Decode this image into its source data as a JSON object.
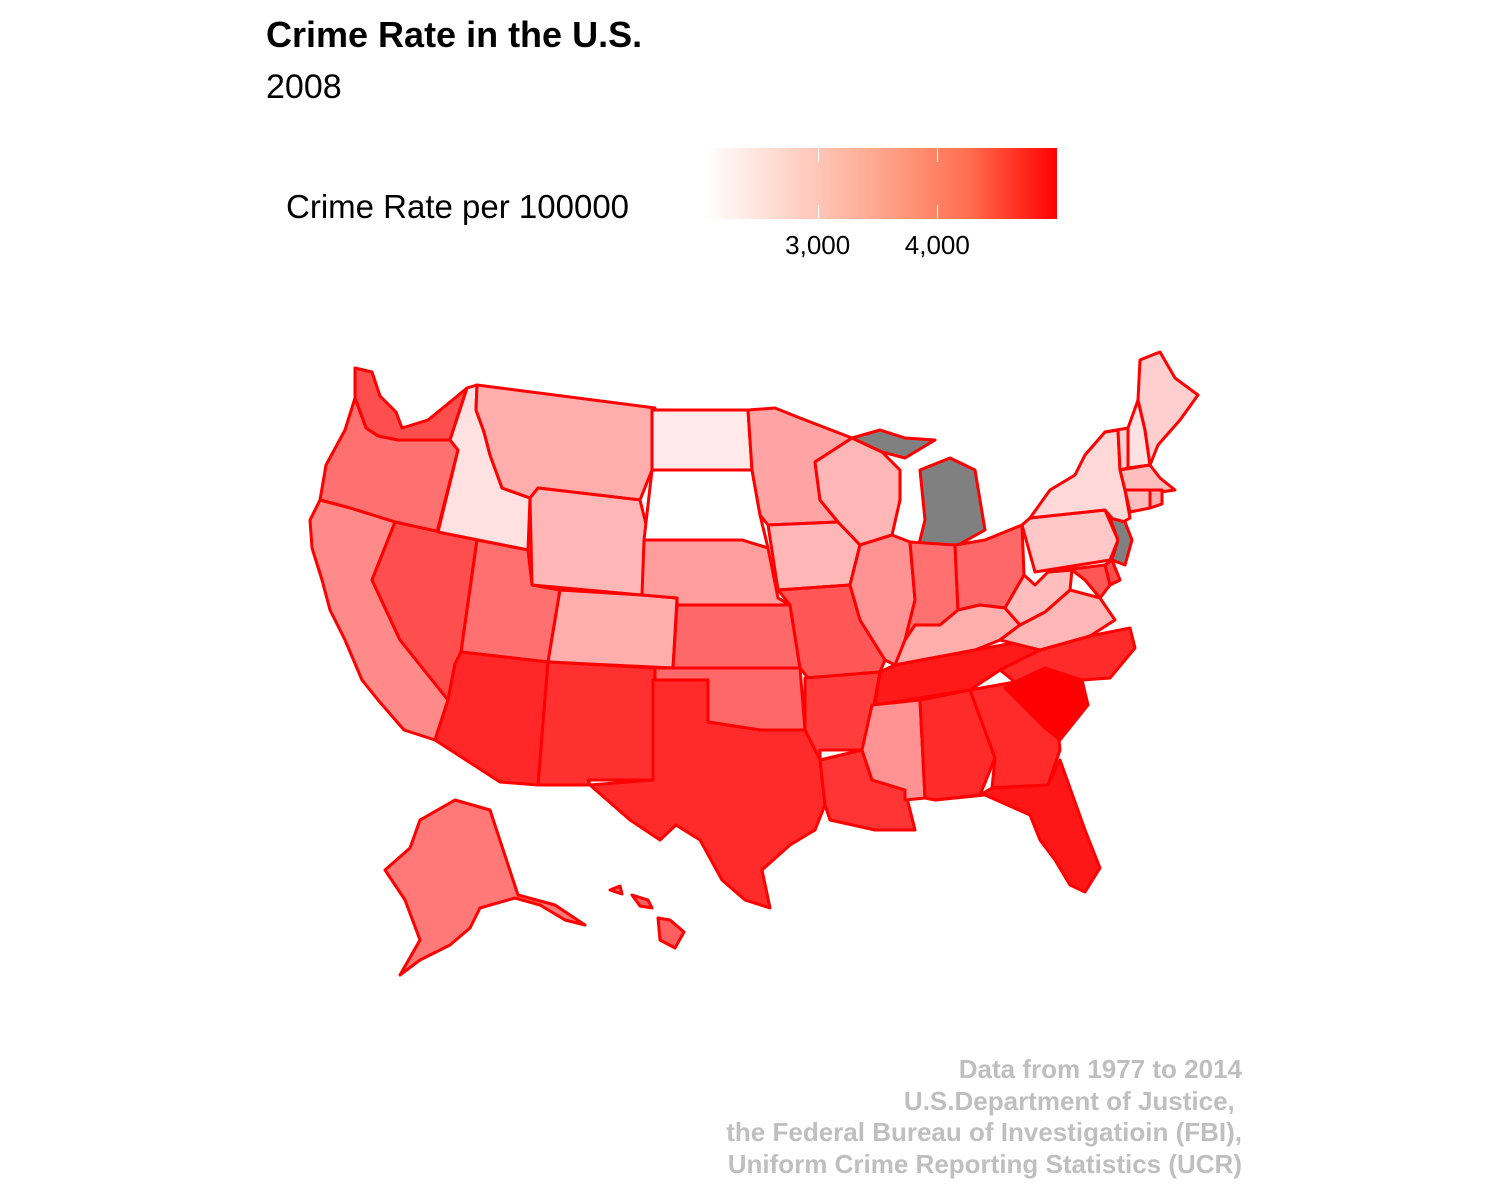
{
  "title": "Crime Rate in the U.S.",
  "subtitle": "2008",
  "legend": {
    "title": "Crime Rate per 100000",
    "ticks": [
      "3,000",
      "4,000"
    ],
    "tick_values": [
      3000,
      4000
    ],
    "range": [
      2050,
      5000
    ],
    "color_low": "#ffffff",
    "color_high": "#ff0000",
    "stroke_color": "#ff0000",
    "missing_color": "#808080"
  },
  "caption": [
    "Data from 1977 to 2014",
    "U.S.Department of Justice, ",
    "the Federal Bureau of Investigatioin (FBI),",
    "Uniform Crime Reporting Statistics (UCR)"
  ],
  "chart_data": {
    "type": "choropleth",
    "year": 2008,
    "variable": "Crime Rate per 100000",
    "scale": {
      "low": "#ffffff",
      "high": "#ff0000"
    },
    "states": {
      "Washington": 4100,
      "Oregon": 3700,
      "California": 3400,
      "Nevada": 4100,
      "Idaho": 2400,
      "Montana": 3000,
      "Wyoming": 2900,
      "Utah": 3700,
      "Arizona": 4550,
      "Colorado": 3000,
      "New Mexico": 4450,
      "North Dakota": 2300,
      "South Dakota": 2050,
      "Nebraska": 3200,
      "Kansas": 3800,
      "Oklahoma": 3800,
      "Texas": 4500,
      "Minnesota": 3100,
      "Iowa": 2900,
      "Missouri": 4000,
      "Arkansas": 4300,
      "Louisiana": 4400,
      "Wisconsin": 2900,
      "Illinois": 3300,
      "Michigan": null,
      "Indiana": 3700,
      "Ohio": 3800,
      "Kentucky": 3000,
      "Tennessee": 4700,
      "Mississippi": 3300,
      "Alabama": 4500,
      "Georgia": 4500,
      "Florida": 4750,
      "South Carolina": 5000,
      "North Carolina": 4500,
      "Virginia": 2900,
      "West Virginia": 2800,
      "Pennsylvania": 2700,
      "New York": 2500,
      "Vermont": 2600,
      "New Hampshire": 2400,
      "Maine": 2600,
      "Massachusetts": 2800,
      "Connecticut": 2800,
      "Rhode Island": 3000,
      "New Jersey": null,
      "Delaware": 4100,
      "Maryland": 4000,
      "Alaska": 3600,
      "Hawaii": 3900
    }
  }
}
